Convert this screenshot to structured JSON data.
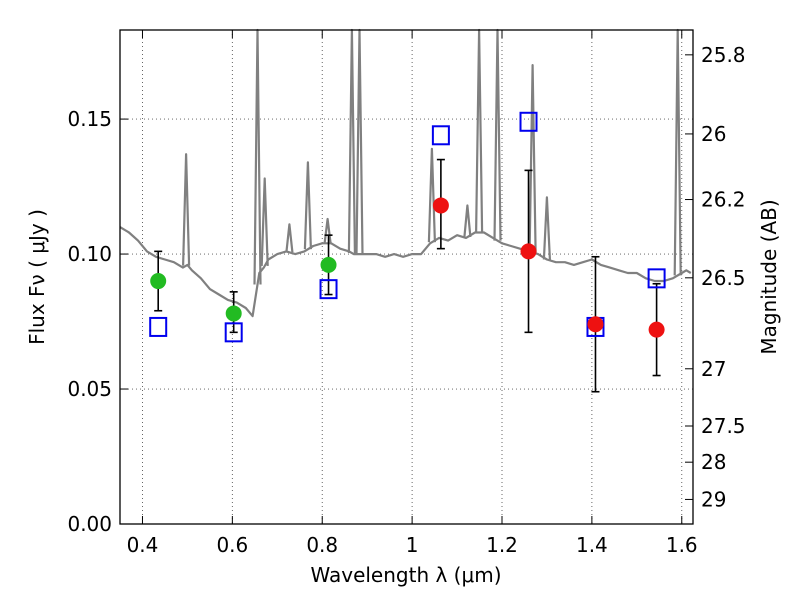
{
  "chart_data": {
    "type": "scatter",
    "xlabel": "Wavelength  λ (μm)",
    "ylabel_left": "Flux  Fν  ( μJy )",
    "ylabel_right": "Magnitude (AB)",
    "xlim": [
      0.35,
      1.625
    ],
    "ylim": [
      0.0,
      0.183
    ],
    "xticks": [
      0.4,
      0.6,
      0.8,
      1.0,
      1.2,
      1.4,
      1.6
    ],
    "xtick_labels": [
      "0.4",
      "0.6",
      "0.8",
      "1",
      "1.2",
      "1.4",
      "1.6"
    ],
    "yticks": [
      0.0,
      0.05,
      0.1,
      0.15
    ],
    "ytick_labels": [
      "0.00",
      "0.05",
      "0.10",
      "0.15"
    ],
    "magnitude_ticks": [
      {
        "label": "25.8",
        "flux": 0.1738
      },
      {
        "label": "26",
        "flux": 0.1445
      },
      {
        "label": "26.2",
        "flux": 0.1202
      },
      {
        "label": "26.5",
        "flux": 0.0912
      },
      {
        "label": "27",
        "flux": 0.0575
      },
      {
        "label": "27.5",
        "flux": 0.0363
      },
      {
        "label": "28",
        "flux": 0.0229
      },
      {
        "label": "29",
        "flux": 0.0091
      }
    ],
    "grid": true,
    "colors": {
      "spectrum": "#808080",
      "green": "#22bb22",
      "red": "#ee1111",
      "model_box": "#0000ee",
      "errorbar": "#000000",
      "grid": "#555555"
    },
    "spectrum": {
      "x": [
        0.35,
        0.37,
        0.39,
        0.41,
        0.43,
        0.45,
        0.47,
        0.49,
        0.5,
        0.51,
        0.53,
        0.55,
        0.57,
        0.59,
        0.61,
        0.63,
        0.645,
        0.66,
        0.67,
        0.68,
        0.7,
        0.72,
        0.74,
        0.76,
        0.78,
        0.8,
        0.82,
        0.84,
        0.86,
        0.87,
        0.88,
        0.9,
        0.92,
        0.94,
        0.96,
        0.98,
        1.0,
        1.02,
        1.04,
        1.06,
        1.08,
        1.1,
        1.12,
        1.14,
        1.16,
        1.18,
        1.2,
        1.22,
        1.24,
        1.26,
        1.28,
        1.3,
        1.32,
        1.34,
        1.36,
        1.38,
        1.4,
        1.42,
        1.44,
        1.46,
        1.48,
        1.5,
        1.52,
        1.54,
        1.56,
        1.58,
        1.6,
        1.61,
        1.62
      ],
      "y": [
        0.11,
        0.108,
        0.105,
        0.101,
        0.099,
        0.098,
        0.097,
        0.095,
        0.096,
        0.094,
        0.091,
        0.087,
        0.085,
        0.083,
        0.082,
        0.08,
        0.077,
        0.093,
        0.095,
        0.098,
        0.1,
        0.101,
        0.1,
        0.101,
        0.103,
        0.104,
        0.104,
        0.102,
        0.101,
        0.1,
        0.1,
        0.1,
        0.1,
        0.099,
        0.1,
        0.099,
        0.1,
        0.1,
        0.104,
        0.106,
        0.105,
        0.107,
        0.106,
        0.108,
        0.108,
        0.106,
        0.104,
        0.103,
        0.102,
        0.101,
        0.1,
        0.098,
        0.097,
        0.097,
        0.096,
        0.097,
        0.098,
        0.096,
        0.095,
        0.094,
        0.093,
        0.093,
        0.091,
        0.09,
        0.09,
        0.091,
        0.093,
        0.094,
        0.093
      ]
    },
    "spectrum_spikes": [
      {
        "x": 0.497,
        "y": 0.137
      },
      {
        "x": 0.656,
        "y": 0.183
      },
      {
        "x": 0.672,
        "y": 0.128
      },
      {
        "x": 0.727,
        "y": 0.111
      },
      {
        "x": 0.768,
        "y": 0.134
      },
      {
        "x": 0.812,
        "y": 0.113
      },
      {
        "x": 0.866,
        "y": 0.183
      },
      {
        "x": 0.883,
        "y": 0.183
      },
      {
        "x": 1.044,
        "y": 0.139
      },
      {
        "x": 1.123,
        "y": 0.118
      },
      {
        "x": 1.149,
        "y": 0.183
      },
      {
        "x": 1.19,
        "y": 0.183
      },
      {
        "x": 1.268,
        "y": 0.17
      },
      {
        "x": 1.3,
        "y": 0.121
      },
      {
        "x": 1.591,
        "y": 0.183
      }
    ],
    "green_points": [
      {
        "x": 0.435,
        "y": 0.09,
        "err": [
          0.079,
          0.101
        ]
      },
      {
        "x": 0.603,
        "y": 0.078,
        "err": [
          0.071,
          0.086
        ]
      },
      {
        "x": 0.814,
        "y": 0.096,
        "err": [
          0.085,
          0.107
        ]
      }
    ],
    "red_points": [
      {
        "x": 1.064,
        "y": 0.118,
        "err": [
          0.102,
          0.135
        ]
      },
      {
        "x": 1.259,
        "y": 0.101,
        "err": [
          0.071,
          0.131
        ]
      },
      {
        "x": 1.408,
        "y": 0.074,
        "err": [
          0.049,
          0.099
        ]
      },
      {
        "x": 1.544,
        "y": 0.072,
        "err": [
          0.055,
          0.089
        ]
      }
    ],
    "model_points": [
      {
        "x": 0.435,
        "y": 0.073
      },
      {
        "x": 0.603,
        "y": 0.071
      },
      {
        "x": 0.814,
        "y": 0.087
      },
      {
        "x": 1.064,
        "y": 0.144
      },
      {
        "x": 1.259,
        "y": 0.149
      },
      {
        "x": 1.408,
        "y": 0.073
      },
      {
        "x": 1.544,
        "y": 0.091
      }
    ]
  }
}
